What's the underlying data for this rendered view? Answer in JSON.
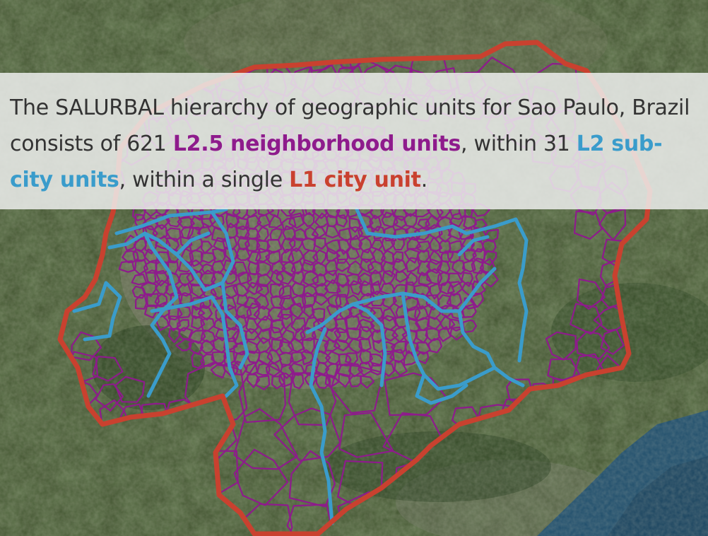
{
  "caption": {
    "part1": "The SALURBAL hierarchy of geographic units for Sao Paulo, Brazil consists of 621 ",
    "l25_label": "L2.5 neighborhood units",
    "part2": ", within 31 ",
    "l2_label": "L2 sub-city units",
    "part3": ", within a single ",
    "l1_label": "L1 city unit",
    "part4": "."
  },
  "colors": {
    "l25": "#8e1b8c",
    "l2": "#3a9ccb",
    "l1": "#c9412f",
    "text": "#333333",
    "ocean": "#1e4f6e",
    "forest": "#2f4a22",
    "urban": "#6f7462"
  },
  "map": {
    "layers": [
      "satellite-basemap",
      "l1-city-boundary",
      "l2-sub-city-boundaries",
      "l25-neighborhood-boundaries"
    ]
  }
}
